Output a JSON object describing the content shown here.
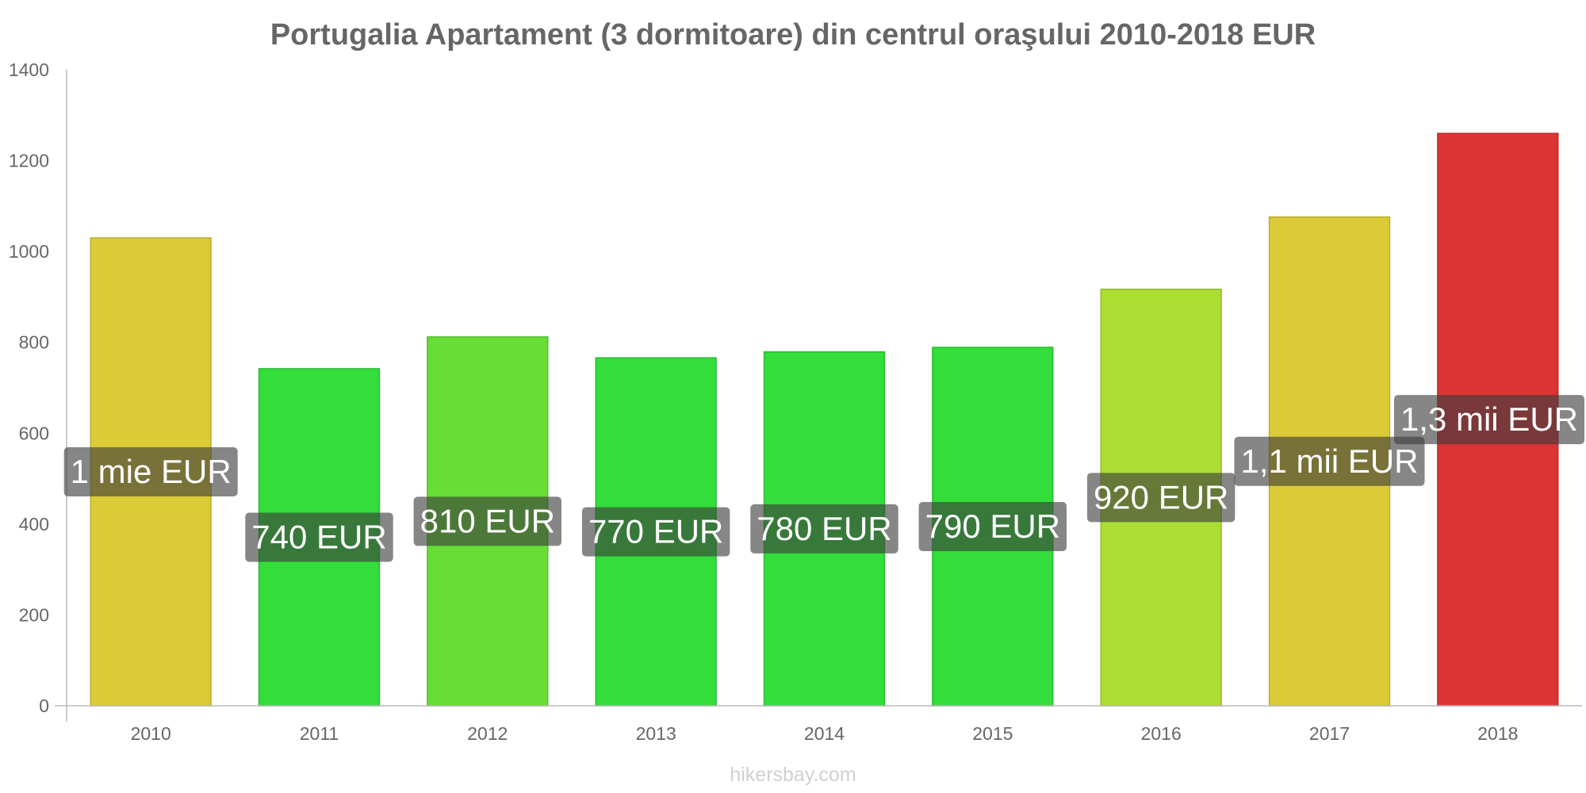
{
  "chart_data": {
    "type": "bar",
    "title": "Portugalia Apartament (3 dormitoare) din centrul oraşului 2010-2018 EUR",
    "xlabel": "",
    "ylabel": "",
    "categories": [
      "2010",
      "2011",
      "2012",
      "2013",
      "2014",
      "2015",
      "2016",
      "2017",
      "2018"
    ],
    "values": [
      1030,
      742,
      812,
      766,
      779,
      789,
      917,
      1076,
      1260
    ],
    "data_labels": [
      "1 mie EUR",
      "740 EUR",
      "810 EUR",
      "770 EUR",
      "780 EUR",
      "790 EUR",
      "920 EUR",
      "1,1 mii EUR",
      "1,3 mii EUR"
    ],
    "bar_colors": [
      "#dbcb36",
      "#33dd3a",
      "#68dd35",
      "#33dd3a",
      "#33dd3a",
      "#33dd3a",
      "#acdd33",
      "#dbcb36",
      "#dc3435"
    ],
    "ylim": [
      0,
      1400
    ],
    "yticks": [
      0,
      200,
      400,
      600,
      800,
      1000,
      1200,
      1400
    ],
    "grid": false,
    "legend": "none"
  },
  "watermark": "hikersbay.com"
}
